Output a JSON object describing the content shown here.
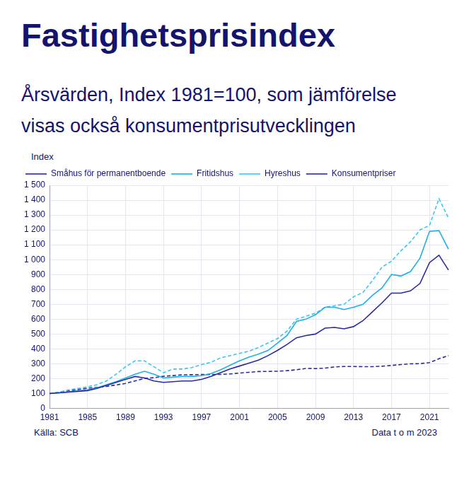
{
  "title": "Fastighetsprisindex",
  "subtitle": "Årsvärden, Index 1981=100, som jämförelse visas också konsumentprisutvecklingen",
  "source": "Källa: SCB",
  "note": "Data t o m 2023",
  "chart_data": {
    "type": "line",
    "y_label": "Index",
    "categories": [
      "1981",
      null,
      null,
      null,
      "1985",
      null,
      null,
      null,
      "1989",
      null,
      null,
      null,
      "1993",
      null,
      null,
      null,
      "1997",
      null,
      null,
      null,
      "2001",
      null,
      null,
      null,
      "2005",
      null,
      null,
      null,
      "2009",
      null,
      null,
      null,
      "2013",
      null,
      null,
      null,
      "2017",
      null,
      null,
      null,
      "2021",
      null,
      null
    ],
    "series": [
      {
        "name": "Småhus för permanentboende",
        "color": "#2b2b9e",
        "line_style": "solid",
        "values": [
          100,
          105,
          110,
          115,
          120,
          135,
          155,
          175,
          195,
          215,
          205,
          185,
          175,
          180,
          185,
          185,
          195,
          215,
          240,
          265,
          285,
          305,
          325,
          355,
          390,
          430,
          475,
          490,
          500,
          540,
          545,
          535,
          550,
          590,
          650,
          710,
          775,
          775,
          790,
          840,
          980,
          1030,
          930
        ]
      },
      {
        "name": "Fritidshus",
        "color": "#1fb0e6",
        "line_style": "solid",
        "values": [
          100,
          105,
          112,
          118,
          125,
          140,
          160,
          180,
          205,
          230,
          250,
          230,
          205,
          210,
          215,
          215,
          220,
          235,
          260,
          290,
          320,
          345,
          365,
          390,
          440,
          490,
          585,
          600,
          630,
          680,
          680,
          665,
          680,
          700,
          760,
          810,
          900,
          890,
          920,
          1010,
          1190,
          1195,
          1070
        ]
      },
      {
        "name": "Hyreshus",
        "color": "#3cc6f2",
        "line_style": "dashed",
        "values": [
          100,
          110,
          125,
          135,
          145,
          160,
          185,
          230,
          280,
          320,
          320,
          280,
          240,
          265,
          265,
          275,
          295,
          310,
          340,
          355,
          370,
          385,
          410,
          440,
          470,
          520,
          600,
          620,
          640,
          680,
          690,
          700,
          750,
          780,
          860,
          950,
          990,
          1060,
          1120,
          1200,
          1230,
          1410,
          1280
        ]
      },
      {
        "name": "Konsumentpriser",
        "color": "#2b2b9e",
        "line_style": "dashed",
        "values": [
          100,
          109,
          118,
          127,
          136,
          142,
          148,
          158,
          168,
          185,
          202,
          207,
          216,
          221,
          226,
          227,
          228,
          228,
          229,
          232,
          238,
          243,
          248,
          249,
          250,
          254,
          260,
          269,
          268,
          271,
          279,
          282,
          282,
          281,
          281,
          284,
          289,
          295,
          300,
          301,
          308,
          334,
          355
        ]
      }
    ],
    "ylim": [
      0,
      1500
    ],
    "yticks": [
      0,
      100,
      200,
      300,
      400,
      500,
      600,
      700,
      800,
      900,
      {
        "value": 1000,
        "label": "1 000"
      },
      {
        "value": 1100,
        "label": "1 100"
      },
      {
        "value": 1200,
        "label": "1 200"
      },
      {
        "value": 1300,
        "label": "1 300"
      },
      {
        "value": 1400,
        "label": "1 400"
      },
      {
        "value": 1500,
        "label": "1 500"
      }
    ],
    "grid": true,
    "legend": "upper left"
  }
}
